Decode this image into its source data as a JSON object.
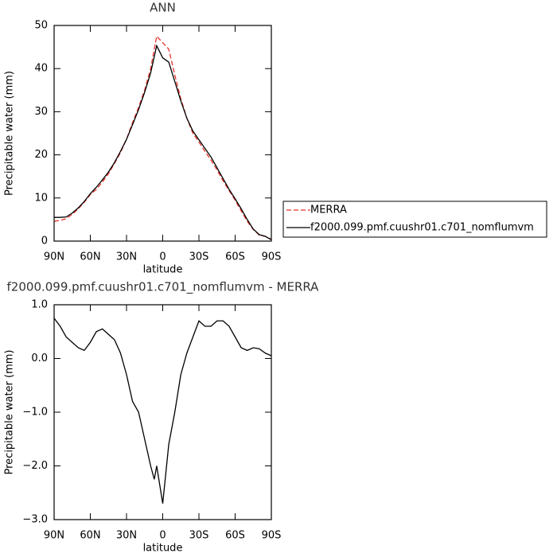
{
  "chart_data": [
    {
      "type": "line",
      "title": "ANN",
      "xlabel": "latitude",
      "ylabel": "Precipitable water (mm)",
      "x": [
        90,
        85,
        80,
        75,
        70,
        65,
        60,
        55,
        50,
        45,
        40,
        35,
        30,
        25,
        20,
        15,
        10,
        5,
        0,
        -5,
        -10,
        -15,
        -20,
        -25,
        -30,
        -35,
        -40,
        -45,
        -50,
        -55,
        -60,
        -65,
        -70,
        -75,
        -80,
        -85,
        -90
      ],
      "series": [
        {
          "name": "MERRA",
          "color": "#e8312a",
          "linestyle": "dashed",
          "values": [
            4.6,
            4.8,
            5.2,
            6.2,
            7.5,
            9,
            10.8,
            12,
            13.7,
            15.6,
            18,
            20.5,
            23.6,
            27.5,
            31,
            35,
            40,
            47.5,
            46,
            44.5,
            38.5,
            33,
            28.5,
            25,
            23,
            20.8,
            18.8,
            16.5,
            14,
            11.7,
            9.5,
            7,
            4.6,
            2.7,
            1.4,
            1.1,
            0.4
          ]
        },
        {
          "name": "f2000.099.pmf.cuushr01.c701_nomflumvm",
          "color": "#000000",
          "linestyle": "solid",
          "values": [
            5.5,
            5.5,
            5.6,
            6.5,
            7.7,
            9.2,
            11,
            12.5,
            14.2,
            16,
            18.2,
            20.8,
            23.6,
            27,
            30.5,
            34.5,
            39,
            45.3,
            42.5,
            41.5,
            37,
            32.5,
            28.5,
            25.5,
            23.5,
            21.5,
            19.5,
            17,
            14.5,
            12,
            9.8,
            7.5,
            5,
            2.8,
            1.5,
            1.1,
            0.3
          ]
        }
      ],
      "xlim": [
        90,
        -90
      ],
      "xticks": [
        {
          "value": 90,
          "label": "90N"
        },
        {
          "value": 60,
          "label": "60N"
        },
        {
          "value": 30,
          "label": "30N"
        },
        0,
        {
          "value": -30,
          "label": "30S"
        },
        {
          "value": -60,
          "label": "60S"
        },
        {
          "value": -90,
          "label": "90S"
        }
      ],
      "ylim": [
        0,
        50
      ],
      "yticks": [
        0,
        10,
        20,
        30,
        40,
        50
      ],
      "legend": "right"
    },
    {
      "type": "line",
      "title": "f2000.099.pmf.cuushr01.c701_nomflumvm - MERRA",
      "xlabel": "latitude",
      "ylabel": "Precipitable water (mm)",
      "x": [
        90,
        85,
        80,
        75,
        70,
        65,
        60,
        55,
        50,
        45,
        40,
        35,
        30,
        25,
        20,
        15,
        10,
        7,
        5,
        0,
        -5,
        -10,
        -15,
        -20,
        -25,
        -30,
        -35,
        -40,
        -45,
        -50,
        -55,
        -60,
        -65,
        -70,
        -75,
        -80,
        -85,
        -90
      ],
      "values": [
        0.75,
        0.6,
        0.4,
        0.3,
        0.2,
        0.15,
        0.3,
        0.5,
        0.55,
        0.45,
        0.35,
        0.1,
        -0.3,
        -0.8,
        -1.0,
        -1.5,
        -2.0,
        -2.25,
        -2.0,
        -2.7,
        -1.6,
        -1.0,
        -0.3,
        0.1,
        0.4,
        0.7,
        0.6,
        0.6,
        0.7,
        0.7,
        0.6,
        0.4,
        0.2,
        0.15,
        0.2,
        0.18,
        0.1,
        0.05
      ],
      "color": "#000000",
      "xlim": [
        90,
        -90
      ],
      "xticks": [
        {
          "value": 90,
          "label": "90N"
        },
        {
          "value": 60,
          "label": "60N"
        },
        {
          "value": 30,
          "label": "30N"
        },
        0,
        {
          "value": -30,
          "label": "30S"
        },
        {
          "value": -60,
          "label": "60S"
        },
        {
          "value": -90,
          "label": "90S"
        }
      ],
      "ylim": [
        -3,
        1
      ],
      "yticks": [
        {
          "value": -3,
          "label": "−3.0"
        },
        {
          "value": -2,
          "label": "−2.0"
        },
        {
          "value": -1,
          "label": "−1.0"
        },
        {
          "value": 0,
          "label": "0.0"
        },
        {
          "value": 1,
          "label": "1.0"
        }
      ]
    }
  ]
}
